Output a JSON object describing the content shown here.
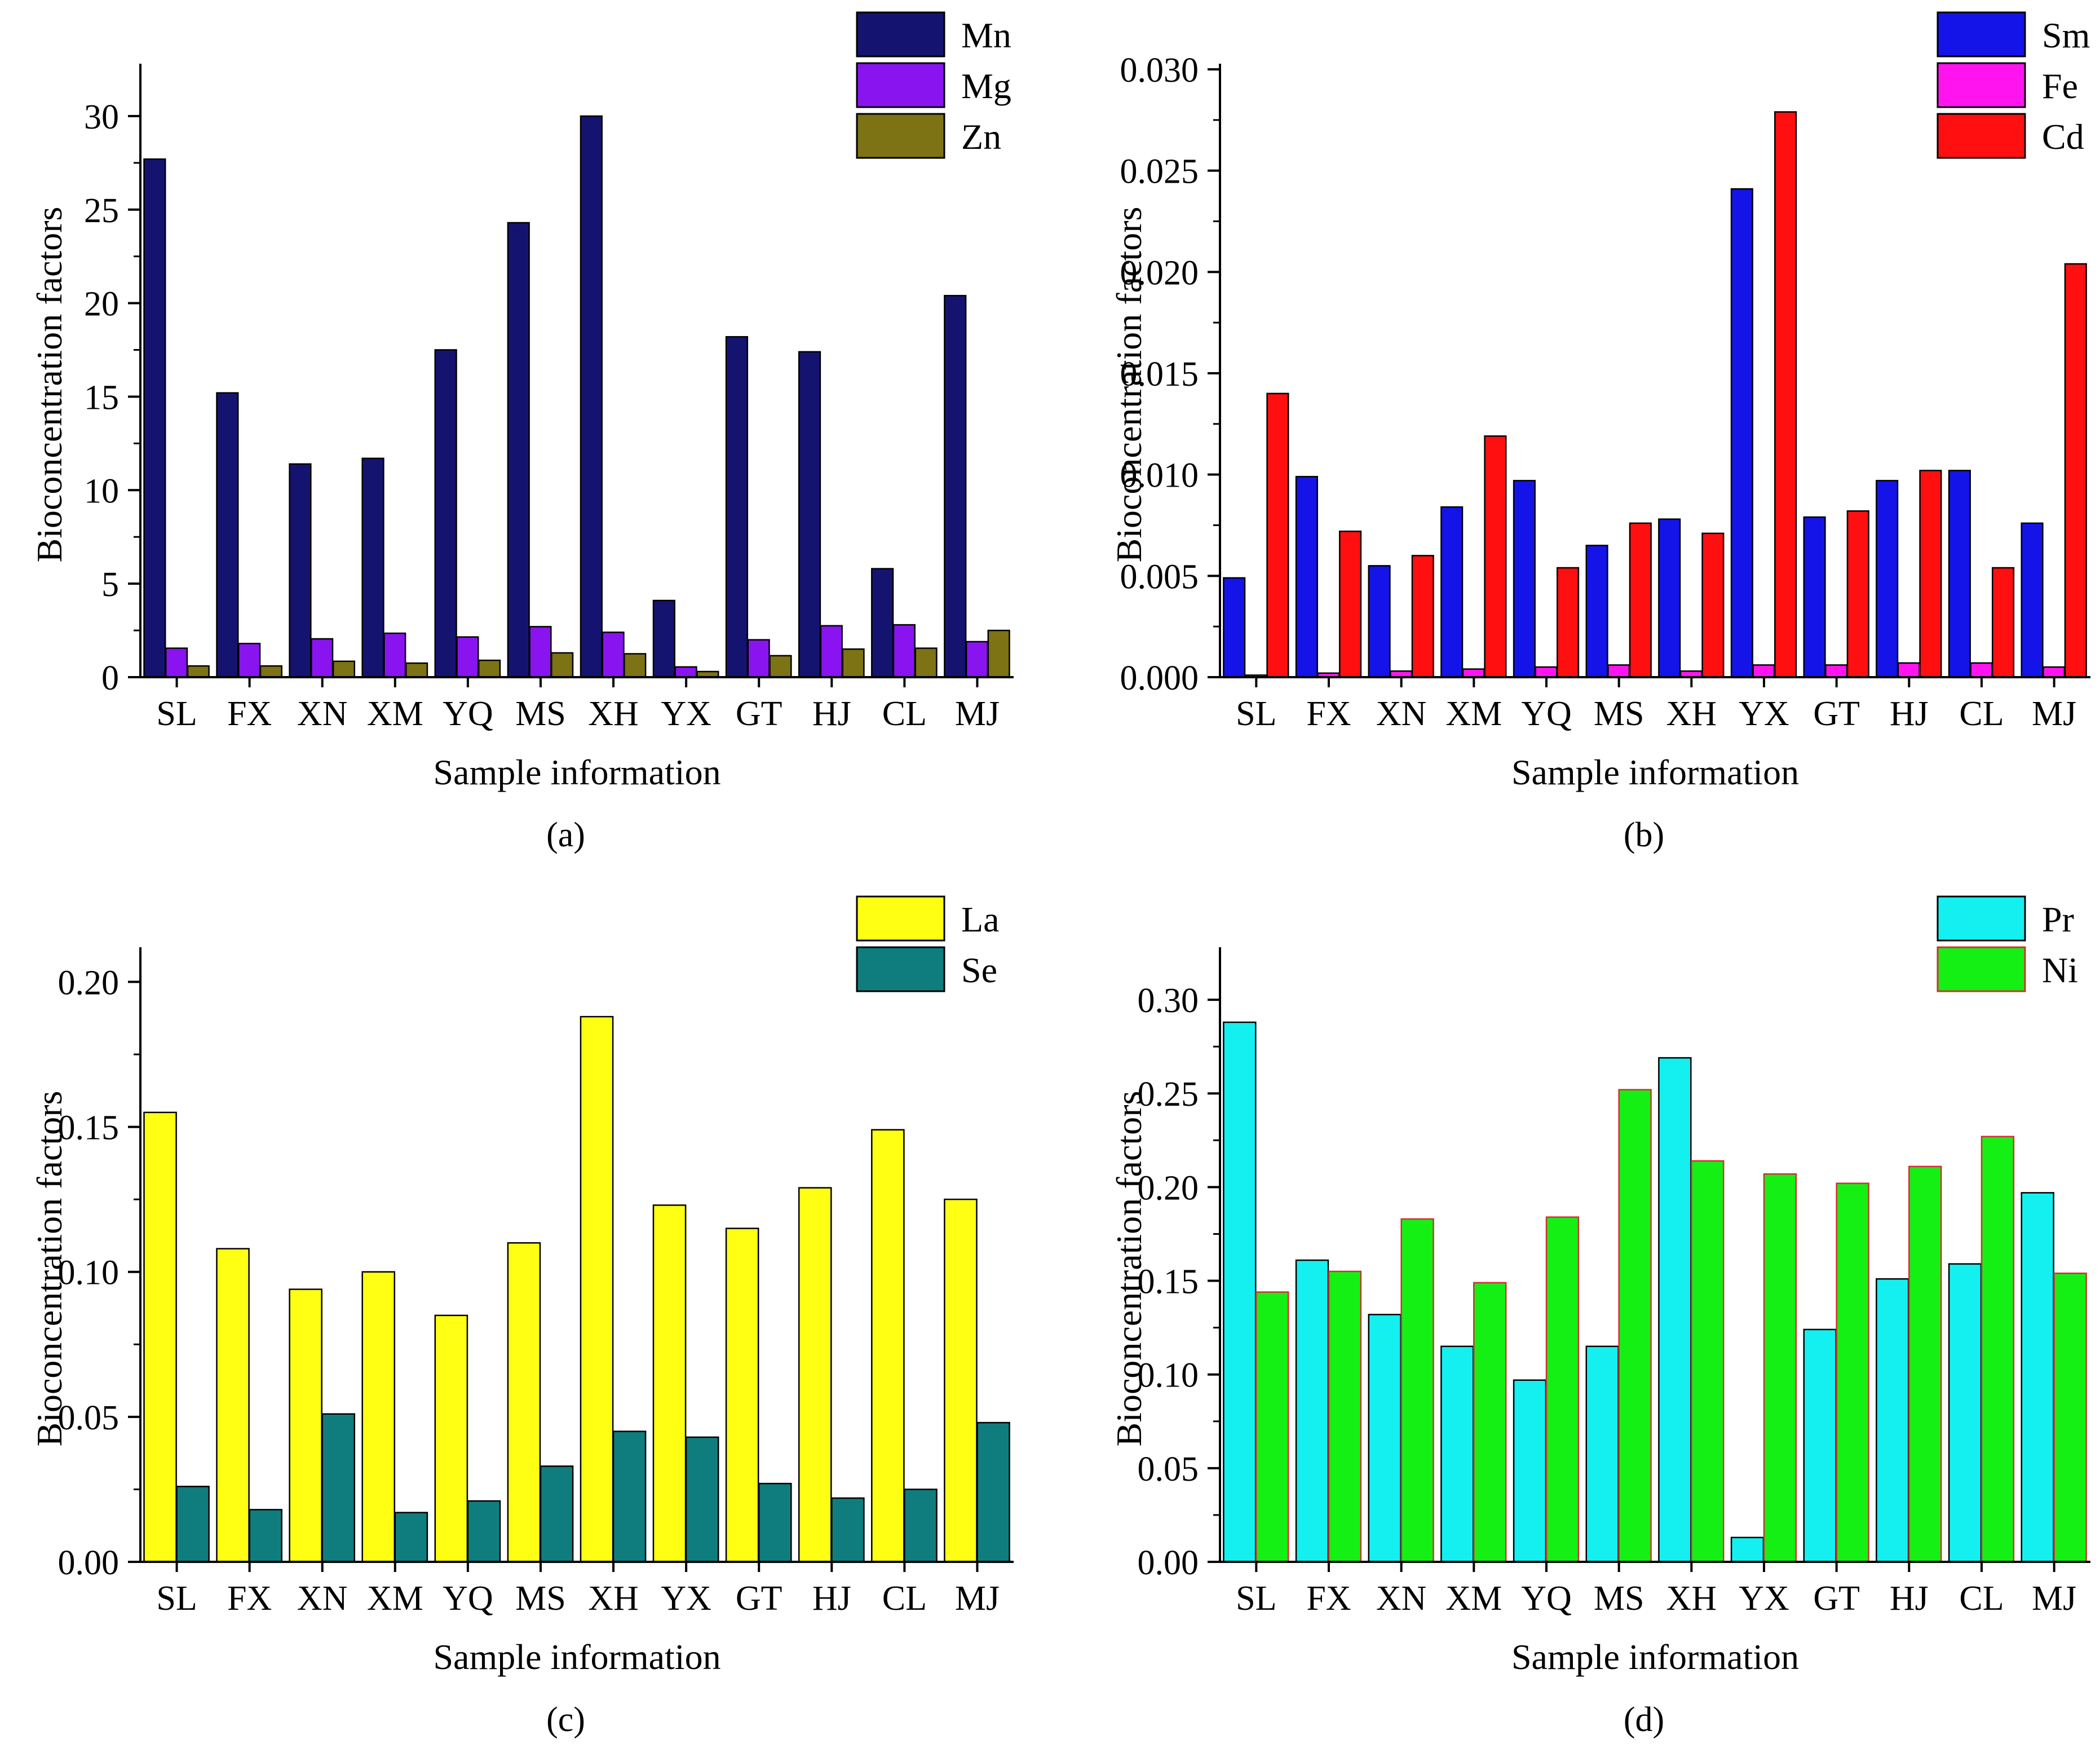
{
  "chart_data": [
    {
      "type": "bar",
      "panel_label": "(a)",
      "categories": [
        "SL",
        "FX",
        "XN",
        "XM",
        "YQ",
        "MS",
        "XH",
        "YX",
        "GT",
        "HJ",
        "CL",
        "MJ"
      ],
      "series": [
        {
          "name": "Mn",
          "color": "#141470",
          "values": [
            27.7,
            15.2,
            11.4,
            11.7,
            17.5,
            24.3,
            30.0,
            4.1,
            18.2,
            17.4,
            5.8,
            20.4
          ]
        },
        {
          "name": "Mg",
          "color": "#8a14f0",
          "values": [
            1.55,
            1.8,
            2.05,
            2.35,
            2.15,
            2.7,
            2.4,
            0.55,
            2.0,
            2.75,
            2.8,
            1.9
          ]
        },
        {
          "name": "Zn",
          "color": "#7d7214",
          "values": [
            0.6,
            0.6,
            0.85,
            0.75,
            0.9,
            1.3,
            1.25,
            0.3,
            1.15,
            1.5,
            1.55,
            2.5
          ]
        }
      ],
      "title": "",
      "xlabel": "Sample information",
      "ylabel": "Bioconcentration factors",
      "ylim": [
        0,
        32.5
      ],
      "yticks": [
        "0",
        "5",
        "10",
        "15",
        "20",
        "25",
        "30"
      ],
      "legend": "top-right"
    },
    {
      "type": "bar",
      "panel_label": "(b)",
      "categories": [
        "SL",
        "FX",
        "XN",
        "XM",
        "YQ",
        "MS",
        "XH",
        "YX",
        "GT",
        "HJ",
        "CL",
        "MJ"
      ],
      "series": [
        {
          "name": "Sm",
          "color": "#1414e8",
          "values": [
            0.0049,
            0.0099,
            0.0055,
            0.0084,
            0.0097,
            0.0065,
            0.0078,
            0.0241,
            0.0079,
            0.0097,
            0.0102,
            0.0076
          ]
        },
        {
          "name": "Fe",
          "color": "#ff14f0",
          "values": [
            0.0001,
            0.0002,
            0.0003,
            0.0004,
            0.0005,
            0.0006,
            0.0003,
            0.0006,
            0.0006,
            0.0007,
            0.0007,
            0.0005
          ]
        },
        {
          "name": "Cd",
          "color": "#ff0f0f",
          "values": [
            0.014,
            0.0072,
            0.006,
            0.0119,
            0.0054,
            0.0076,
            0.0071,
            0.0279,
            0.0082,
            0.0102,
            0.0054,
            0.0204
          ]
        }
      ],
      "title": "",
      "xlabel": "Sample information",
      "ylabel": "Bioconcentration factors",
      "ylim": [
        0,
        0.03
      ],
      "yticks": [
        "0.000",
        "0.005",
        "0.010",
        "0.015",
        "0.020",
        "0.025",
        "0.030"
      ],
      "legend": "top-right"
    },
    {
      "type": "bar",
      "panel_label": "(c)",
      "categories": [
        "SL",
        "FX",
        "XN",
        "XM",
        "YQ",
        "MS",
        "XH",
        "YX",
        "GT",
        "HJ",
        "CL",
        "MJ"
      ],
      "series": [
        {
          "name": "La",
          "color": "#ffff14",
          "values": [
            0.155,
            0.108,
            0.094,
            0.1,
            0.085,
            0.11,
            0.188,
            0.123,
            0.115,
            0.129,
            0.149,
            0.125
          ]
        },
        {
          "name": "Se",
          "color": "#0f7d7d",
          "values": [
            0.026,
            0.018,
            0.051,
            0.017,
            0.021,
            0.033,
            0.045,
            0.043,
            0.027,
            0.022,
            0.025,
            0.048
          ]
        }
      ],
      "title": "",
      "xlabel": "Sample information",
      "ylabel": "Bioconcentration factors",
      "ylim": [
        0,
        0.21
      ],
      "yticks": [
        "0.00",
        "0.05",
        "0.10",
        "0.15",
        "0.20"
      ],
      "legend": "top-right"
    },
    {
      "type": "bar",
      "panel_label": "(d)",
      "categories": [
        "SL",
        "FX",
        "XN",
        "XM",
        "YQ",
        "MS",
        "XH",
        "YX",
        "GT",
        "HJ",
        "CL",
        "MJ"
      ],
      "series": [
        {
          "name": "Pr",
          "color": "#14f0f0",
          "values": [
            0.288,
            0.161,
            0.132,
            0.115,
            0.097,
            0.115,
            0.269,
            0.013,
            0.124,
            0.151,
            0.159,
            0.197
          ]
        },
        {
          "name": "Ni",
          "color": "#14f014",
          "values": [
            0.144,
            0.155,
            0.183,
            0.149,
            0.184,
            0.252,
            0.214,
            0.207,
            0.202,
            0.211,
            0.227,
            0.154
          ]
        }
      ],
      "title": "",
      "xlabel": "Sample information",
      "ylabel": "Bioconcentration factors",
      "ylim": [
        0,
        0.325
      ],
      "yticks": [
        "0.00",
        "0.05",
        "0.10",
        "0.15",
        "0.20",
        "0.25",
        "0.30"
      ],
      "legend": "top-right"
    }
  ]
}
